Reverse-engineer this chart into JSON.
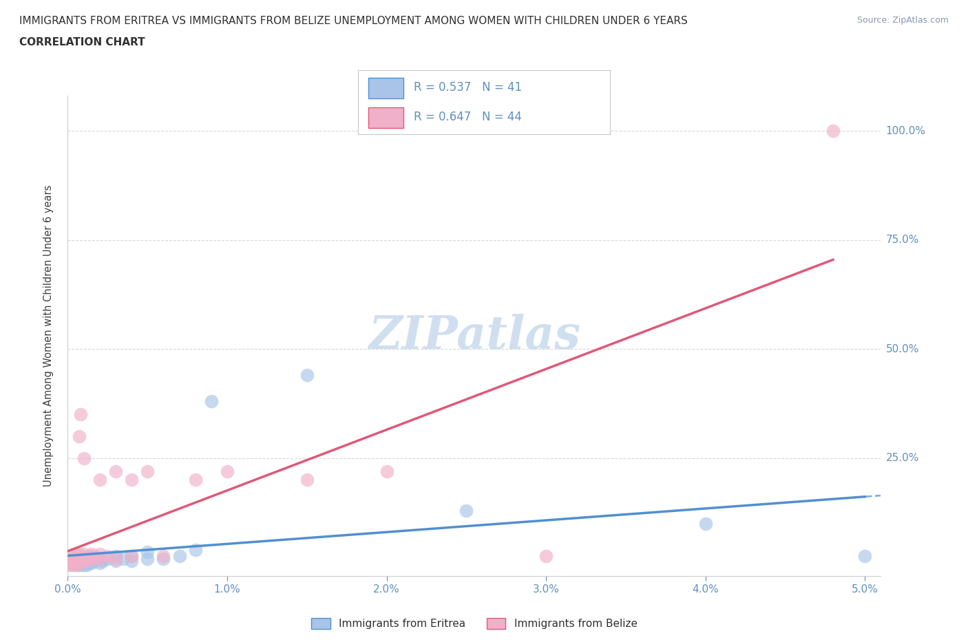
{
  "title_line1": "IMMIGRANTS FROM ERITREA VS IMMIGRANTS FROM BELIZE UNEMPLOYMENT AMONG WOMEN WITH CHILDREN UNDER 6 YEARS",
  "title_line2": "CORRELATION CHART",
  "source": "Source: ZipAtlas.com",
  "ylabel": "Unemployment Among Women with Children Under 6 years",
  "xlim": [
    0.0,
    0.051
  ],
  "ylim": [
    -0.02,
    1.08
  ],
  "xtick_labels": [
    "0.0%",
    "1.0%",
    "2.0%",
    "3.0%",
    "4.0%",
    "5.0%"
  ],
  "xtick_values": [
    0.0,
    0.01,
    0.02,
    0.03,
    0.04,
    0.05
  ],
  "ytick_labels": [
    "25.0%",
    "50.0%",
    "75.0%",
    "100.0%"
  ],
  "ytick_values": [
    0.25,
    0.5,
    0.75,
    1.0
  ],
  "eritrea_color": "#a8c4e8",
  "belize_color": "#f0b0c8",
  "eritrea_line_color": "#5090d0",
  "belize_line_color": "#e05878",
  "tick_color": "#6090c0",
  "R_eritrea": 0.537,
  "N_eritrea": 41,
  "R_belize": 0.647,
  "N_belize": 44,
  "legend_label_eritrea": "Immigrants from Eritrea",
  "legend_label_belize": "Immigrants from Belize",
  "watermark": "ZIPatlas",
  "watermark_color": "#d0dff0",
  "background_color": "#ffffff",
  "grid_color": "#d8d8d8",
  "title_color": "#303030",
  "eritrea_scatter": [
    [
      0.0002,
      0.01
    ],
    [
      0.0003,
      0.02
    ],
    [
      0.0004,
      0.01
    ],
    [
      0.0005,
      0.015
    ],
    [
      0.0006,
      0.005
    ],
    [
      0.0007,
      0.01
    ],
    [
      0.0007,
      0.02
    ],
    [
      0.0008,
      0.005
    ],
    [
      0.0008,
      0.015
    ],
    [
      0.0009,
      0.01
    ],
    [
      0.0009,
      0.02
    ],
    [
      0.001,
      0.005
    ],
    [
      0.001,
      0.01
    ],
    [
      0.001,
      0.02
    ],
    [
      0.0012,
      0.005
    ],
    [
      0.0012,
      0.015
    ],
    [
      0.0013,
      0.01
    ],
    [
      0.0013,
      0.025
    ],
    [
      0.0015,
      0.01
    ],
    [
      0.0015,
      0.02
    ],
    [
      0.0017,
      0.015
    ],
    [
      0.0018,
      0.02
    ],
    [
      0.002,
      0.01
    ],
    [
      0.002,
      0.02
    ],
    [
      0.0022,
      0.015
    ],
    [
      0.0025,
      0.02
    ],
    [
      0.003,
      0.015
    ],
    [
      0.003,
      0.025
    ],
    [
      0.0035,
      0.02
    ],
    [
      0.004,
      0.015
    ],
    [
      0.004,
      0.025
    ],
    [
      0.005,
      0.02
    ],
    [
      0.005,
      0.035
    ],
    [
      0.006,
      0.02
    ],
    [
      0.007,
      0.025
    ],
    [
      0.008,
      0.04
    ],
    [
      0.009,
      0.38
    ],
    [
      0.015,
      0.44
    ],
    [
      0.025,
      0.13
    ],
    [
      0.04,
      0.1
    ],
    [
      0.05,
      0.025
    ]
  ],
  "belize_scatter": [
    [
      0.0001,
      0.005
    ],
    [
      0.0002,
      0.01
    ],
    [
      0.0002,
      0.02
    ],
    [
      0.0003,
      0.005
    ],
    [
      0.0003,
      0.015
    ],
    [
      0.0003,
      0.025
    ],
    [
      0.0004,
      0.01
    ],
    [
      0.0004,
      0.02
    ],
    [
      0.0005,
      0.005
    ],
    [
      0.0005,
      0.015
    ],
    [
      0.0005,
      0.03
    ],
    [
      0.0006,
      0.01
    ],
    [
      0.0006,
      0.02
    ],
    [
      0.0007,
      0.015
    ],
    [
      0.0007,
      0.03
    ],
    [
      0.0007,
      0.3
    ],
    [
      0.0008,
      0.01
    ],
    [
      0.0008,
      0.025
    ],
    [
      0.0008,
      0.35
    ],
    [
      0.001,
      0.02
    ],
    [
      0.001,
      0.03
    ],
    [
      0.001,
      0.25
    ],
    [
      0.0012,
      0.015
    ],
    [
      0.0012,
      0.02
    ],
    [
      0.0013,
      0.025
    ],
    [
      0.0015,
      0.02
    ],
    [
      0.0015,
      0.03
    ],
    [
      0.0017,
      0.025
    ],
    [
      0.002,
      0.02
    ],
    [
      0.002,
      0.03
    ],
    [
      0.002,
      0.2
    ],
    [
      0.0025,
      0.025
    ],
    [
      0.003,
      0.02
    ],
    [
      0.003,
      0.22
    ],
    [
      0.004,
      0.025
    ],
    [
      0.004,
      0.2
    ],
    [
      0.005,
      0.22
    ],
    [
      0.006,
      0.025
    ],
    [
      0.008,
      0.2
    ],
    [
      0.01,
      0.22
    ],
    [
      0.015,
      0.2
    ],
    [
      0.02,
      0.22
    ],
    [
      0.03,
      0.025
    ],
    [
      0.048,
      1.0
    ]
  ]
}
